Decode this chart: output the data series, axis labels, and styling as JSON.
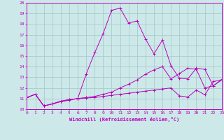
{
  "xlabel": "Windchill (Refroidissement éolien,°C)",
  "xlim": [
    0,
    23
  ],
  "ylim": [
    10,
    20
  ],
  "yticks": [
    10,
    11,
    12,
    13,
    14,
    15,
    16,
    17,
    18,
    19,
    20
  ],
  "xticks": [
    0,
    1,
    2,
    3,
    4,
    5,
    6,
    7,
    8,
    9,
    10,
    11,
    12,
    13,
    14,
    15,
    16,
    17,
    18,
    19,
    20,
    21,
    22,
    23
  ],
  "bg_color": "#cce8e8",
  "grid_color": "#aacccc",
  "line_color": "#bb00bb",
  "curve1_x": [
    0,
    1,
    2,
    3,
    4,
    5,
    6,
    7,
    8,
    9,
    10,
    11,
    12,
    13,
    14,
    15,
    16,
    17,
    18,
    19,
    20,
    21,
    22,
    23
  ],
  "curve1_y": [
    11.1,
    11.4,
    10.3,
    10.5,
    10.7,
    10.85,
    11.0,
    11.05,
    11.1,
    11.2,
    11.3,
    11.4,
    11.5,
    11.6,
    11.7,
    11.8,
    11.9,
    12.0,
    11.25,
    11.15,
    11.8,
    11.35,
    12.6,
    12.75
  ],
  "curve2_x": [
    0,
    1,
    2,
    3,
    4,
    5,
    6,
    7,
    8,
    9,
    10,
    11,
    12,
    13,
    14,
    15,
    16,
    17,
    18,
    19,
    20,
    21,
    22,
    23
  ],
  "curve2_y": [
    11.1,
    11.4,
    10.3,
    10.5,
    10.75,
    10.9,
    11.0,
    11.1,
    11.2,
    11.4,
    11.6,
    12.0,
    12.35,
    12.75,
    13.3,
    13.7,
    14.0,
    12.85,
    13.35,
    13.85,
    13.75,
    12.0,
    12.2,
    12.75
  ],
  "curve3_x": [
    0,
    1,
    2,
    3,
    4,
    5,
    6,
    7,
    8,
    9,
    10,
    11,
    12,
    13,
    14,
    15,
    16,
    17,
    18,
    19,
    20,
    21,
    22,
    23
  ],
  "curve3_y": [
    11.1,
    11.4,
    10.3,
    10.5,
    10.75,
    10.9,
    11.0,
    13.3,
    15.3,
    17.1,
    19.3,
    19.5,
    18.1,
    18.3,
    16.6,
    15.2,
    16.5,
    14.1,
    12.9,
    12.85,
    13.85,
    13.75,
    12.2,
    12.8
  ]
}
